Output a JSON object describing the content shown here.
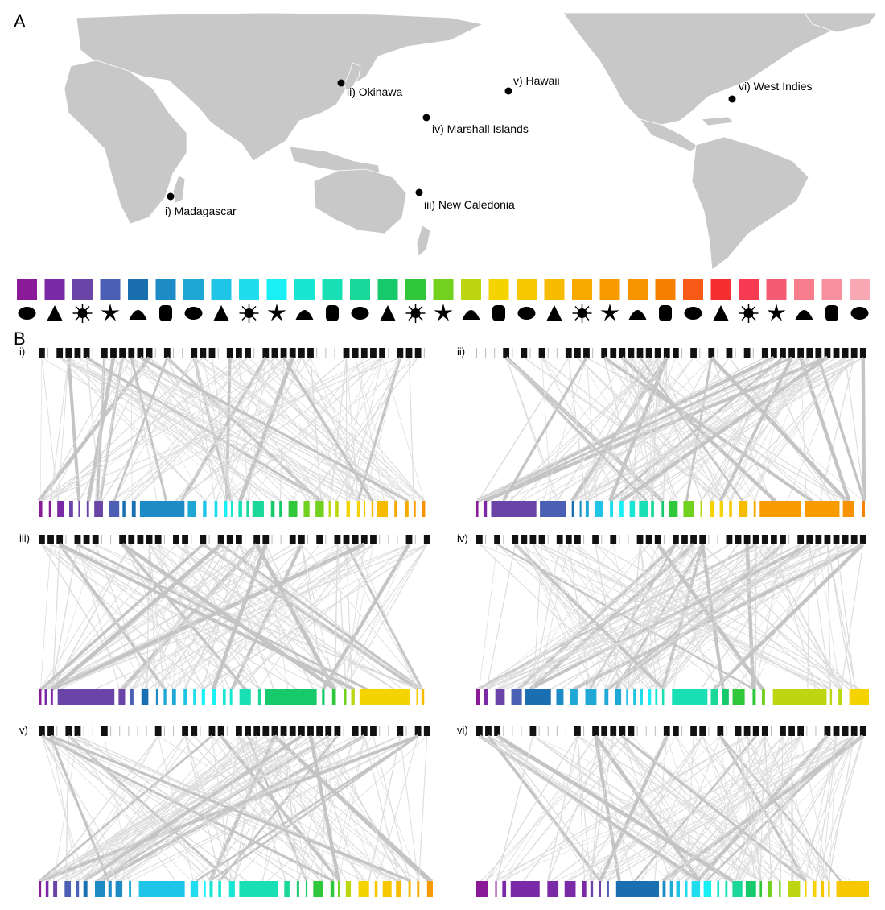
{
  "panel_a": {
    "label": "A",
    "sites": [
      {
        "label": "i) Madagascar"
      },
      {
        "label": "ii) Okinawa"
      },
      {
        "label": "iii) New Caledonia"
      },
      {
        "label": "iv) Marshall Islands"
      },
      {
        "label": "v) Hawaii"
      },
      {
        "label": "vi) West Indies"
      }
    ]
  },
  "panel_b": {
    "label": "B",
    "host_group_colors": [
      "#8b1a98",
      "#7a2aa6",
      "#6b44a8",
      "#4b5fb4",
      "#1a6fb0",
      "#1d8bc5",
      "#1fa8d6",
      "#20c4e6",
      "#1fdcef",
      "#19f0f5",
      "#19e6d2",
      "#19e0b4",
      "#1ad89a",
      "#16c96a",
      "#30c73a",
      "#72d11e",
      "#bcd712",
      "#f5d300",
      "#f7c800",
      "#f7bb00",
      "#f7a900",
      "#f79b00",
      "#f79200",
      "#f77f00",
      "#f75a16",
      "#f52f2f",
      "#f53a52",
      "#f55c73",
      "#f77c8c",
      "#f7909e",
      "#f7a8b2"
    ],
    "host_group_icons": [
      "fish-icon",
      "sea-pen-icon",
      "spider-icon",
      "starfish-icon",
      "gorgonian-icon",
      "scallop-icon",
      "coral-icon",
      "octopus-icon",
      "anemone-icon",
      "sponge-icon",
      "nudibranch-icon",
      "crab-icon",
      "feather-icon",
      "urchin-icon",
      "star-coral-icon",
      "snail-icon",
      "shrimp-icon",
      "grape-icon",
      "ant-icon",
      "jellyfish-icon",
      "brittle-star-icon",
      "squid-icon",
      "clam-icon",
      "tube-sponge-icon",
      "basket-star-icon",
      "worm-icon",
      "sea-slug-icon",
      "ray-icon",
      "tunicate-icon",
      "caterpillar-icon",
      "copepod-icon"
    ],
    "networks": [
      {
        "label": "i)"
      },
      {
        "label": "ii)"
      },
      {
        "label": "iii)"
      },
      {
        "label": "iv)"
      },
      {
        "label": "v)"
      },
      {
        "label": "vi)"
      }
    ]
  }
}
